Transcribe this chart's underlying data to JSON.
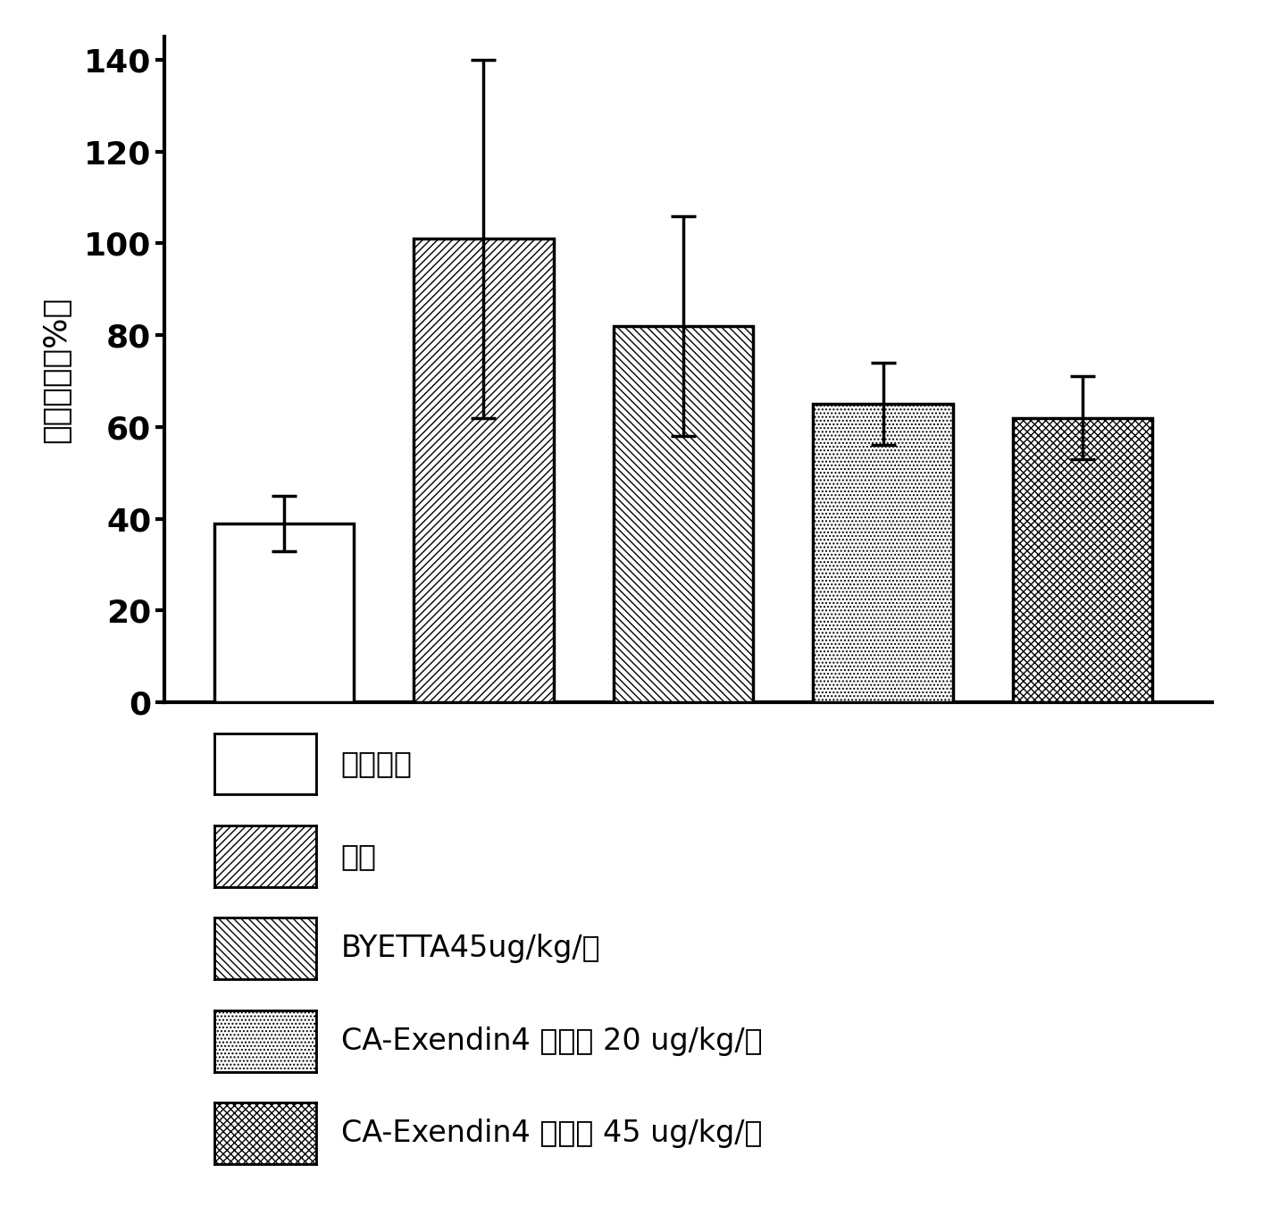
{
  "values": [
    39,
    101,
    82,
    65,
    62
  ],
  "errors": [
    6,
    39,
    24,
    9,
    9
  ],
  "ylabel": "总胆固醇（%）",
  "ylim": [
    0,
    145
  ],
  "yticks": [
    0,
    20,
    40,
    60,
    80,
    100,
    120,
    140
  ],
  "bar_width": 0.7,
  "background_color": "#ffffff",
  "legend_labels": [
    "正常对照",
    "载体",
    "BYETTA45ug/kg/天",
    "CA-Exendin4 缓合物 20 ug/kg/周",
    "CA-Exendin4 缓合物 45 ug/kg/周"
  ],
  "hatch_patterns": [
    "",
    "////",
    "\\\\\\\\",
    "....",
    "xxxx"
  ],
  "bar_edge_lw": 2.5,
  "axis_lw": 3.0,
  "tick_font_size": 26,
  "ylabel_font_size": 26,
  "legend_font_size": 24
}
